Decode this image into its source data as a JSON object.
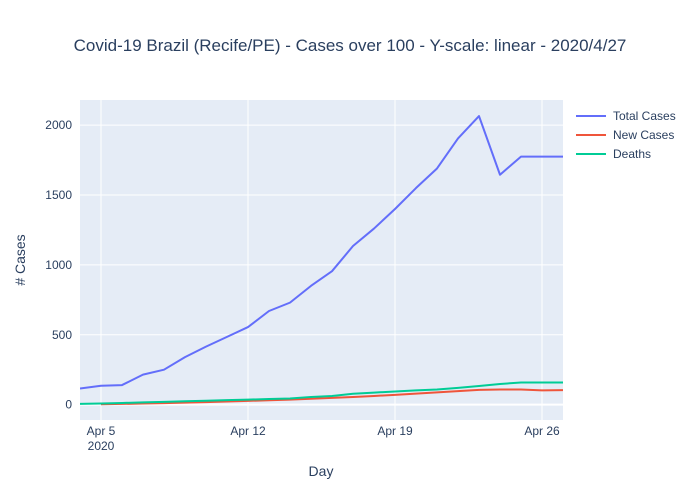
{
  "chart_data": {
    "type": "line",
    "title": "Covid-19 Brazil (Recife/PE) - Cases over 100 - Y-scale: linear - 2020/4/27",
    "xlabel": "Day",
    "ylabel": "# Cases",
    "x_tick_labels": [
      {
        "date": "2020-04-05",
        "label": "Apr 5",
        "sublabel": "2020"
      },
      {
        "date": "2020-04-12",
        "label": "Apr 12"
      },
      {
        "date": "2020-04-19",
        "label": "Apr 19"
      },
      {
        "date": "2020-04-26",
        "label": "Apr 26"
      }
    ],
    "y_ticks": [
      0,
      500,
      1000,
      1500,
      2000
    ],
    "xlim": [
      "2020-04-04",
      "2020-04-27"
    ],
    "ylim": [
      -110,
      2180
    ],
    "grid": true,
    "legend_position": "right",
    "series": [
      {
        "name": "Total Cases",
        "color": "#636efa",
        "x": [
          "2020-04-04",
          "2020-04-05",
          "2020-04-06",
          "2020-04-07",
          "2020-04-08",
          "2020-04-09",
          "2020-04-10",
          "2020-04-11",
          "2020-04-12",
          "2020-04-13",
          "2020-04-14",
          "2020-04-15",
          "2020-04-16",
          "2020-04-17",
          "2020-04-18",
          "2020-04-19",
          "2020-04-20",
          "2020-04-21",
          "2020-04-22",
          "2020-04-23",
          "2020-04-24",
          "2020-04-25",
          "2020-04-26",
          "2020-04-27"
        ],
        "y": [
          115,
          135,
          140,
          215,
          250,
          340,
          415,
          485,
          555,
          670,
          730,
          850,
          955,
          1135,
          1260,
          1400,
          1550,
          1690,
          1905,
          2065,
          1645,
          1775,
          1775,
          1775
        ]
      },
      {
        "name": "New Cases",
        "color": "#ef553b",
        "x": [
          "2020-04-05",
          "2020-04-06",
          "2020-04-07",
          "2020-04-08",
          "2020-04-09",
          "2020-04-10",
          "2020-04-11",
          "2020-04-12",
          "2020-04-13",
          "2020-04-14",
          "2020-04-15",
          "2020-04-16",
          "2020-04-17",
          "2020-04-18",
          "2020-04-19",
          "2020-04-20",
          "2020-04-21",
          "2020-04-22",
          "2020-04-23",
          "2020-04-24",
          "2020-04-25",
          "2020-04-26",
          "2020-04-27"
        ],
        "y": [
          3,
          5,
          8,
          11,
          14,
          18,
          22,
          27,
          31,
          36,
          42,
          48,
          55,
          62,
          70,
          79,
          88,
          97,
          106,
          108,
          108,
          102,
          104
        ]
      },
      {
        "name": "Deaths",
        "color": "#00cc96",
        "x": [
          "2020-04-04",
          "2020-04-05",
          "2020-04-06",
          "2020-04-07",
          "2020-04-08",
          "2020-04-09",
          "2020-04-10",
          "2020-04-11",
          "2020-04-12",
          "2020-04-13",
          "2020-04-14",
          "2020-04-15",
          "2020-04-16",
          "2020-04-17",
          "2020-04-18",
          "2020-04-19",
          "2020-04-20",
          "2020-04-21",
          "2020-04-22",
          "2020-04-23",
          "2020-04-24",
          "2020-04-25",
          "2020-04-26",
          "2020-04-27"
        ],
        "y": [
          5,
          8,
          12,
          16,
          20,
          24,
          28,
          32,
          36,
          40,
          44,
          55,
          62,
          78,
          86,
          94,
          102,
          108,
          120,
          133,
          148,
          158,
          158,
          158
        ]
      }
    ]
  }
}
